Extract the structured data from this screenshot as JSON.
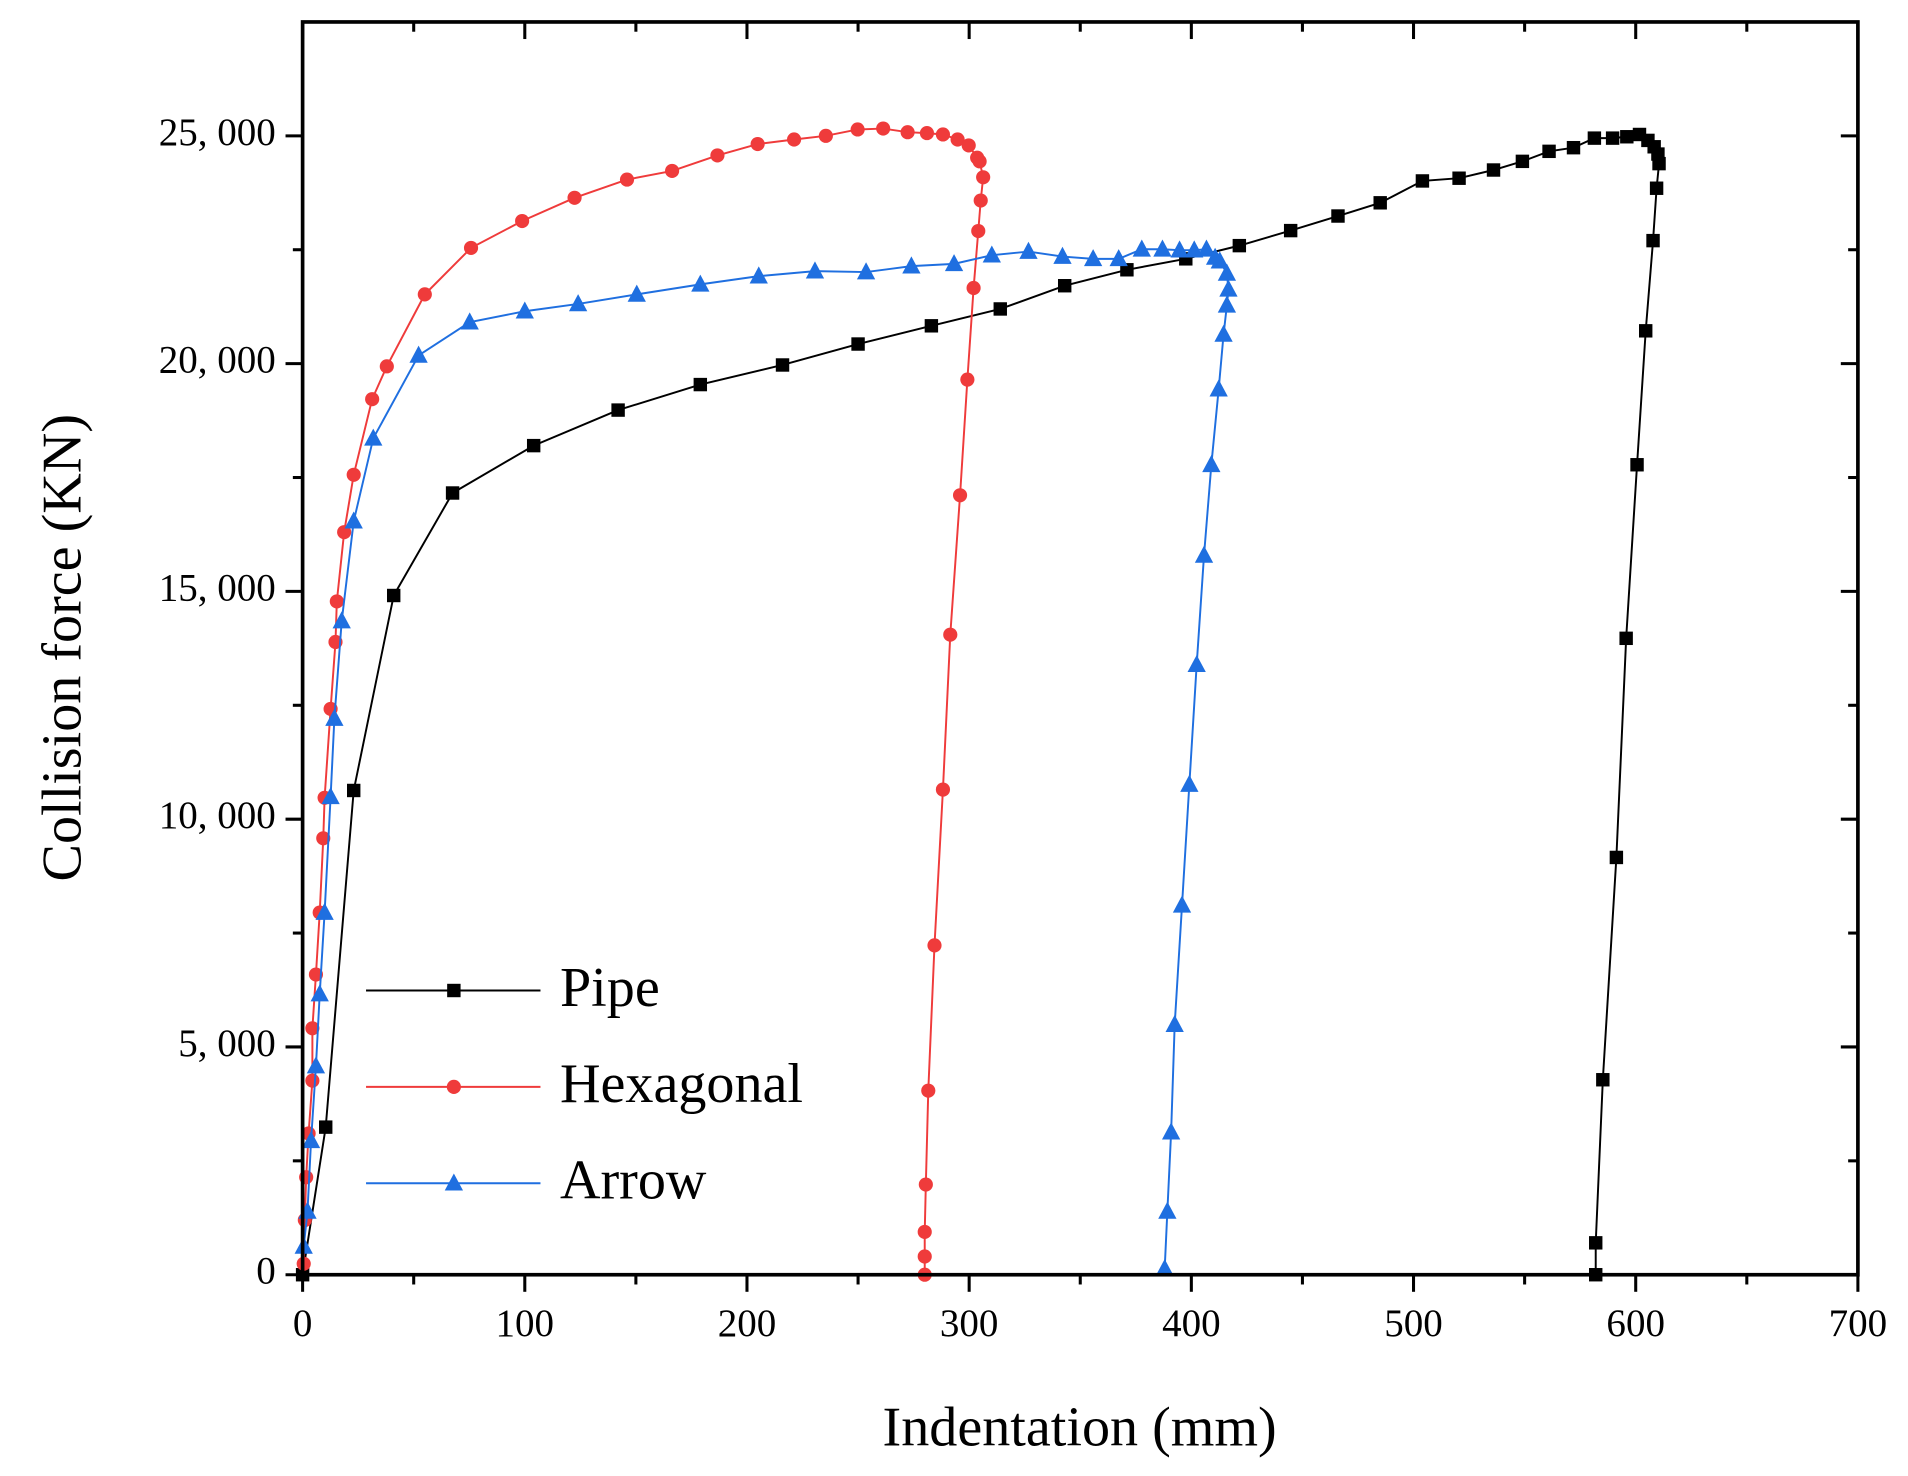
{
  "chart_data": {
    "type": "line",
    "xlabel": "Indentation (mm)",
    "ylabel": "Collision force (KN)",
    "xlim": [
      0,
      700
    ],
    "ylim": [
      0,
      27500
    ],
    "xticks": [
      0,
      100,
      200,
      300,
      400,
      500,
      600,
      700
    ],
    "xminorticks": [
      50,
      150,
      250,
      350,
      450,
      550,
      650
    ],
    "yticks": [
      0,
      {
        "value": 5000,
        "label": "5, 000"
      },
      {
        "value": 10000,
        "label": "10, 000"
      },
      {
        "value": 15000,
        "label": "15, 000"
      },
      {
        "value": 20000,
        "label": "20, 000"
      },
      {
        "value": 25000,
        "label": "25, 000"
      }
    ],
    "yminorticks": [
      2500,
      7500,
      12500,
      17500,
      22500
    ],
    "grid": false,
    "legend": "lower left",
    "series": [
      {
        "name": "Pipe",
        "color": "#000000",
        "marker": "square",
        "x": [
          0,
          10.4,
          23,
          41,
          67.5,
          104,
          142,
          179,
          216,
          250,
          283,
          314,
          343,
          371,
          397.5,
          421.6,
          444.7,
          466,
          485,
          504,
          520.5,
          536,
          549,
          561,
          572,
          581.4,
          589.6,
          596,
          601.7,
          605.5,
          608.3,
          610,
          610.5,
          609.4,
          607.8,
          604.5,
          600.6,
          595.7,
          591.3,
          585.2,
          582,
          582
        ],
        "values": [
          0,
          3240,
          10630,
          14910,
          17160,
          18200,
          18980,
          19540,
          19970,
          20430,
          20830,
          21200,
          21710,
          22060,
          22300,
          22590,
          22920,
          23240,
          23530,
          24010,
          24070,
          24250,
          24440,
          24660,
          24740,
          24950,
          24950,
          24980,
          25030,
          24900,
          24760,
          24600,
          24390,
          23850,
          22700,
          20720,
          17780,
          13970,
          9160,
          4280,
          700,
          0
        ]
      },
      {
        "name": "Hexagonal",
        "color": "#ef3b3b",
        "marker": "circle",
        "x": [
          0.5,
          1,
          1.6,
          2.7,
          4.4,
          4.4,
          6,
          7.7,
          9.3,
          9.9,
          12.6,
          14.8,
          15.4,
          18.7,
          23,
          31.3,
          37.9,
          55,
          75.8,
          98.8,
          122.4,
          146,
          166.3,
          186.7,
          204.8,
          221.2,
          235.5,
          249.8,
          261.3,
          272.3,
          281,
          288.2,
          294.8,
          299.8,
          303.6,
          304.7,
          306.3,
          305.2,
          304.1,
          302,
          299.2,
          295.9,
          291.5,
          288.2,
          284.4,
          281.6,
          280.5,
          280,
          280,
          280
        ],
        "values": [
          240,
          1200,
          2140,
          3100,
          4260,
          5410,
          6590,
          7950,
          9580,
          10470,
          12420,
          13890,
          14780,
          16300,
          17560,
          19220,
          19940,
          21520,
          22540,
          23130,
          23640,
          24040,
          24230,
          24570,
          24820,
          24920,
          25000,
          25140,
          25160,
          25080,
          25060,
          25030,
          24920,
          24790,
          24520,
          24440,
          24090,
          23580,
          22910,
          21660,
          19650,
          17110,
          14050,
          10650,
          7230,
          4040,
          1980,
          940,
          400,
          0
        ]
      },
      {
        "name": "Arrow",
        "color": "#1f6fe0",
        "marker": "triangle",
        "x": [
          0.5,
          2.2,
          3.8,
          6,
          7.7,
          9.9,
          12.6,
          14.3,
          17.6,
          23,
          31.8,
          52.2,
          75.2,
          100,
          124,
          150.4,
          179,
          205.3,
          230.6,
          253.6,
          274,
          293.2,
          310.2,
          326.7,
          342,
          355.8,
          367.3,
          377.7,
          387,
          394.7,
          401.3,
          406.8,
          410.7,
          412.8,
          416,
          416.7,
          416,
          414.5,
          412.3,
          409,
          405.7,
          402.4,
          399.1,
          395.8,
          392.5,
          390.9,
          389.2,
          388
        ],
        "values": [
          620,
          1390,
          2940,
          4580,
          6160,
          7950,
          10490,
          12210,
          14350,
          16540,
          18360,
          20180,
          20910,
          21150,
          21310,
          21520,
          21740,
          21920,
          22030,
          22010,
          22140,
          22190,
          22380,
          22460,
          22350,
          22300,
          22300,
          22510,
          22510,
          22490,
          22490,
          22510,
          22330,
          22250,
          21980,
          21630,
          21280,
          20640,
          19440,
          17780,
          15790,
          13390,
          10760,
          8110,
          5490,
          3130,
          1390,
          130
        ]
      }
    ]
  }
}
